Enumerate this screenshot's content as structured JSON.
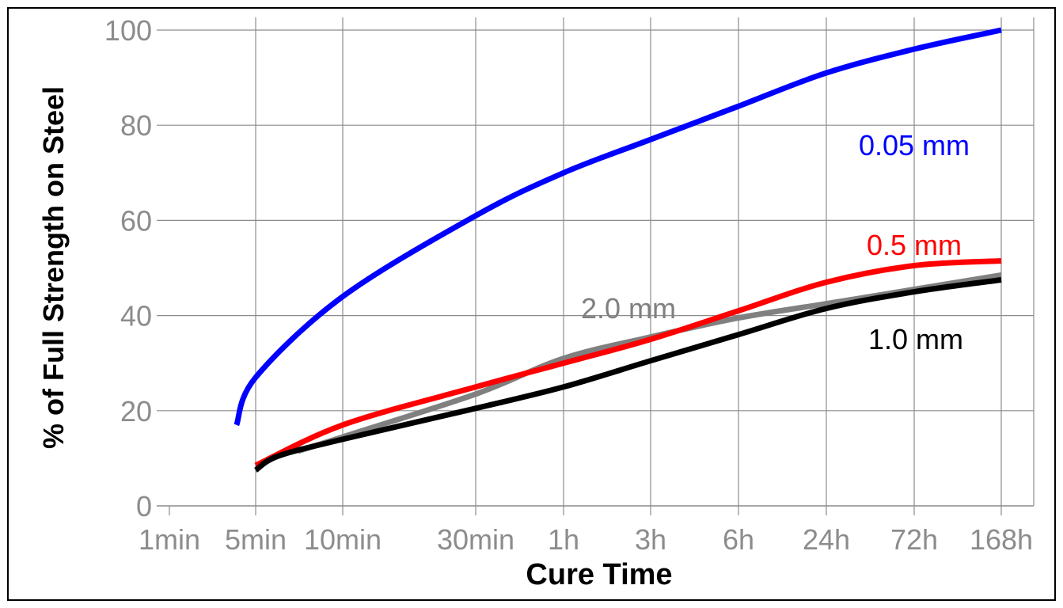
{
  "chart_data": {
    "type": "line",
    "title": "",
    "xlabel": "Cure Time",
    "ylabel": "% of Full Strength on Steel",
    "x_scale": "log",
    "x_ticks": [
      "1min",
      "5min",
      "10min",
      "30min",
      "1h",
      "3h",
      "6h",
      "24h",
      "72h",
      "168h"
    ],
    "ylim": [
      0,
      100
    ],
    "y_ticks": [
      0,
      20,
      40,
      60,
      80,
      100
    ],
    "grid": true,
    "series": [
      {
        "name": "0.05 mm",
        "color": "#0000ff",
        "x": [
          "3.5min",
          "5min",
          "10min",
          "30min",
          "1h",
          "3h",
          "6h",
          "24h",
          "72h",
          "168h"
        ],
        "y": [
          17,
          27,
          44,
          61,
          70,
          77,
          84,
          91,
          96,
          100
        ]
      },
      {
        "name": "0.5 mm",
        "color": "#ff0000",
        "x": [
          "5min",
          "10min",
          "30min",
          "1h",
          "3h",
          "6h",
          "24h",
          "72h",
          "168h"
        ],
        "y": [
          8.5,
          17,
          25,
          30,
          35,
          41,
          47,
          50.5,
          51.5
        ]
      },
      {
        "name": "2.0 mm",
        "color": "#808080",
        "x": [
          "7min",
          "10min",
          "30min",
          "1h",
          "3h",
          "6h",
          "24h",
          "72h",
          "168h"
        ],
        "y": [
          11.5,
          14.5,
          23.5,
          31,
          35.5,
          39.5,
          42.5,
          45.5,
          48.5
        ]
      },
      {
        "name": "1.0 mm",
        "color": "#000000",
        "x": [
          "5min",
          "6min",
          "10min",
          "30min",
          "1h",
          "3h",
          "6h",
          "24h",
          "72h",
          "168h"
        ],
        "y": [
          7.5,
          10.5,
          14,
          20.5,
          25,
          30.5,
          36,
          41.5,
          45,
          47.5
        ]
      }
    ]
  }
}
